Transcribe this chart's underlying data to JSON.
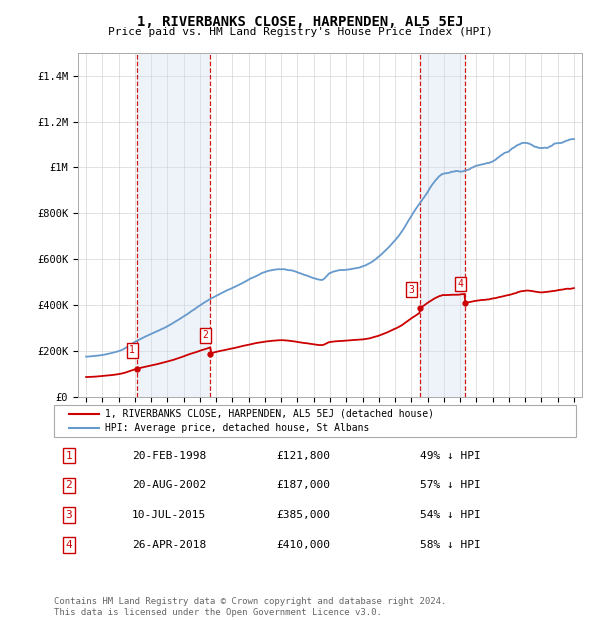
{
  "title": "1, RIVERBANKS CLOSE, HARPENDEN, AL5 5EJ",
  "subtitle": "Price paid vs. HM Land Registry's House Price Index (HPI)",
  "sales": [
    {
      "date_num": 1998.13,
      "price": 121800,
      "label": "1",
      "date_str": "20-FEB-1998",
      "pct": "49% ↓ HPI"
    },
    {
      "date_num": 2002.64,
      "price": 187000,
      "label": "2",
      "date_str": "20-AUG-2002",
      "pct": "57% ↓ HPI"
    },
    {
      "date_num": 2015.52,
      "price": 385000,
      "label": "3",
      "date_str": "10-JUL-2015",
      "pct": "54% ↓ HPI"
    },
    {
      "date_num": 2018.32,
      "price": 410000,
      "label": "4",
      "date_str": "26-APR-2018",
      "pct": "58% ↓ HPI"
    }
  ],
  "xlim": [
    1994.5,
    2025.5
  ],
  "ylim": [
    0,
    1500000
  ],
  "yticks": [
    0,
    200000,
    400000,
    600000,
    800000,
    1000000,
    1200000,
    1400000
  ],
  "ytick_labels": [
    "£0",
    "£200K",
    "£400K",
    "£600K",
    "£800K",
    "£1M",
    "£1.2M",
    "£1.4M"
  ],
  "xticks": [
    1995,
    1996,
    1997,
    1998,
    1999,
    2000,
    2001,
    2002,
    2003,
    2004,
    2005,
    2006,
    2007,
    2008,
    2009,
    2010,
    2011,
    2012,
    2013,
    2014,
    2015,
    2016,
    2017,
    2018,
    2019,
    2020,
    2021,
    2022,
    2023,
    2024,
    2025
  ],
  "sale_color": "#cc0000",
  "hpi_color": "#6699cc",
  "marker_box_color": "#cc0000",
  "shade_color": "#ccddf0",
  "vline_color": "#cc0000",
  "legend_label_sale": "1, RIVERBANKS CLOSE, HARPENDEN, AL5 5EJ (detached house)",
  "legend_label_hpi": "HPI: Average price, detached house, St Albans",
  "footer": "Contains HM Land Registry data © Crown copyright and database right 2024.\nThis data is licensed under the Open Government Licence v3.0.",
  "bg_color": "#ffffff",
  "grid_color": "#cccccc"
}
